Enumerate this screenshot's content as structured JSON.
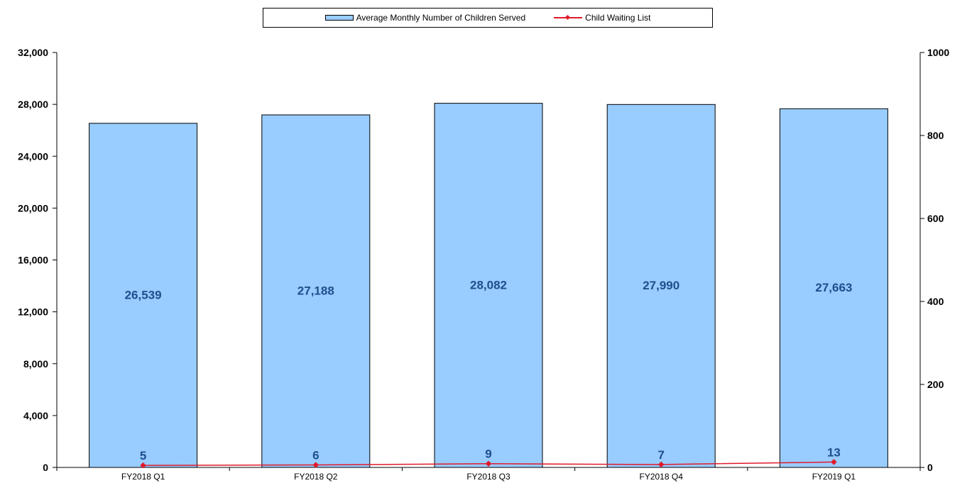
{
  "chart_data": {
    "type": "bar",
    "categories": [
      "FY2018 Q1",
      "FY2018 Q2",
      "FY2018 Q3",
      "FY2018 Q4",
      "FY2019 Q1"
    ],
    "series": [
      {
        "name": "Average Monthly Number of Children Served",
        "type": "bar",
        "axis": "left",
        "values": [
          26539,
          27188,
          28082,
          27990,
          27663
        ],
        "labels": [
          "26,539",
          "27,188",
          "28,082",
          "27,990",
          "27,663"
        ],
        "color": "#99ccff"
      },
      {
        "name": "Child Waiting List",
        "type": "line",
        "axis": "right",
        "values": [
          5,
          6,
          9,
          7,
          13
        ],
        "labels": [
          "5",
          "6",
          "9",
          "7",
          "13"
        ],
        "color": "#e01a2a"
      }
    ],
    "y_left": {
      "range": [
        0,
        32000
      ],
      "ticks": [
        0,
        4000,
        8000,
        12000,
        16000,
        20000,
        24000,
        28000,
        32000
      ],
      "tick_labels": [
        "0",
        "4,000",
        "8,000",
        "12,000",
        "16,000",
        "20,000",
        "24,000",
        "28,000",
        "32,000"
      ]
    },
    "y_right": {
      "range": [
        0,
        1000
      ],
      "ticks": [
        0,
        200,
        400,
        600,
        800,
        1000
      ],
      "tick_labels": [
        "0",
        "200",
        "400",
        "600",
        "800",
        "1000"
      ]
    },
    "legend_position": "top-center",
    "grid": false,
    "data_label_color": "#1f4e8c"
  }
}
